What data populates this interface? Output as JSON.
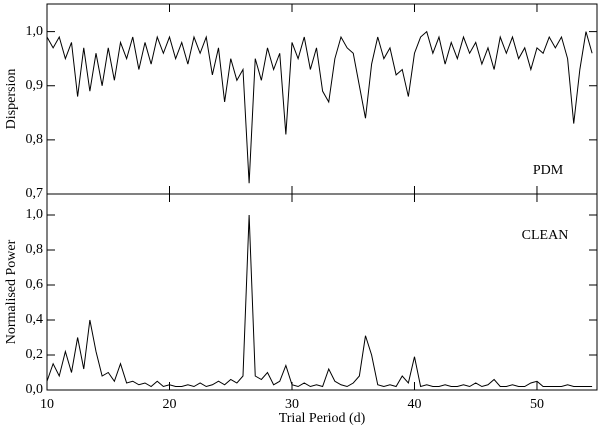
{
  "chart_data": [
    {
      "type": "line",
      "ylabel": "Dispersion",
      "annotation": "PDM",
      "x": [
        10,
        10.5,
        11,
        11.5,
        12,
        12.5,
        13,
        13.5,
        14,
        14.5,
        15,
        15.5,
        16,
        16.5,
        17,
        17.5,
        18,
        18.5,
        19,
        19.5,
        20,
        20.5,
        21,
        21.5,
        22,
        22.5,
        23,
        23.5,
        24,
        24.5,
        25,
        25.5,
        26,
        26.5,
        27,
        27.5,
        28,
        28.5,
        29,
        29.5,
        30,
        30.5,
        31,
        31.5,
        32,
        32.5,
        33,
        33.5,
        34,
        34.5,
        35,
        35.5,
        36,
        36.5,
        37,
        37.5,
        38,
        38.5,
        39,
        39.5,
        40,
        40.5,
        41,
        41.5,
        42,
        42.5,
        43,
        43.5,
        44,
        44.5,
        45,
        45.5,
        46,
        46.5,
        47,
        47.5,
        48,
        48.5,
        49,
        49.5,
        50,
        50.5,
        51,
        51.5,
        52,
        52.5,
        53,
        53.5,
        54,
        54.5
      ],
      "series": [
        {
          "color": "#000000",
          "values": [
            0.99,
            0.97,
            0.99,
            0.95,
            0.98,
            0.88,
            0.97,
            0.89,
            0.96,
            0.9,
            0.97,
            0.91,
            0.98,
            0.95,
            0.99,
            0.93,
            0.98,
            0.94,
            0.99,
            0.96,
            0.99,
            0.95,
            0.98,
            0.94,
            0.99,
            0.96,
            0.99,
            0.92,
            0.97,
            0.87,
            0.95,
            0.91,
            0.93,
            0.72,
            0.95,
            0.91,
            0.97,
            0.93,
            0.96,
            0.81,
            0.98,
            0.95,
            0.99,
            0.93,
            0.97,
            0.89,
            0.87,
            0.95,
            0.99,
            0.97,
            0.96,
            0.9,
            0.84,
            0.94,
            0.99,
            0.95,
            0.97,
            0.92,
            0.93,
            0.88,
            0.96,
            0.99,
            1.0,
            0.96,
            0.99,
            0.94,
            0.98,
            0.95,
            0.99,
            0.96,
            0.98,
            0.94,
            0.97,
            0.93,
            0.99,
            0.96,
            0.99,
            0.95,
            0.97,
            0.93,
            0.97,
            0.96,
            0.99,
            0.97,
            0.99,
            0.95,
            0.83,
            0.93,
            1.0,
            0.96
          ]
        }
      ],
      "xlim": [
        10,
        54.9
      ],
      "xticks": [
        10,
        20,
        30,
        40,
        50
      ],
      "ylim": [
        0.7,
        1.051
      ],
      "yticks": [
        {
          "value": 0.7,
          "label": "0,7"
        },
        {
          "value": 0.8,
          "label": "0,8"
        },
        {
          "value": 0.9,
          "label": "0,9"
        },
        {
          "value": 1.0,
          "label": "1,0"
        }
      ]
    },
    {
      "type": "line",
      "ylabel": "Normalised Power",
      "xlabel": "Trial Period (d)",
      "annotation": "CLEAN",
      "x": [
        10,
        10.5,
        11,
        11.5,
        12,
        12.5,
        13,
        13.5,
        14,
        14.5,
        15,
        15.5,
        16,
        16.5,
        17,
        17.5,
        18,
        18.5,
        19,
        19.5,
        20,
        20.5,
        21,
        21.5,
        22,
        22.5,
        23,
        23.5,
        24,
        24.5,
        25,
        25.5,
        26,
        26.5,
        27,
        27.5,
        28,
        28.5,
        29,
        29.5,
        30,
        30.5,
        31,
        31.5,
        32,
        32.5,
        33,
        33.5,
        34,
        34.5,
        35,
        35.5,
        36,
        36.5,
        37,
        37.5,
        38,
        38.5,
        39,
        39.5,
        40,
        40.5,
        41,
        41.5,
        42,
        42.5,
        43,
        43.5,
        44,
        44.5,
        45,
        45.5,
        46,
        46.5,
        47,
        47.5,
        48,
        48.5,
        49,
        49.5,
        50,
        50.5,
        51,
        51.5,
        52,
        52.5,
        53,
        53.5,
        54,
        54.5
      ],
      "series": [
        {
          "color": "#000000",
          "values": [
            0.05,
            0.15,
            0.08,
            0.22,
            0.1,
            0.3,
            0.12,
            0.4,
            0.22,
            0.08,
            0.1,
            0.05,
            0.15,
            0.04,
            0.05,
            0.03,
            0.04,
            0.02,
            0.05,
            0.02,
            0.03,
            0.02,
            0.02,
            0.03,
            0.02,
            0.04,
            0.02,
            0.03,
            0.05,
            0.03,
            0.06,
            0.04,
            0.08,
            1.0,
            0.08,
            0.06,
            0.1,
            0.03,
            0.05,
            0.14,
            0.03,
            0.02,
            0.04,
            0.02,
            0.03,
            0.02,
            0.12,
            0.05,
            0.03,
            0.02,
            0.04,
            0.08,
            0.31,
            0.2,
            0.03,
            0.02,
            0.03,
            0.02,
            0.08,
            0.04,
            0.19,
            0.02,
            0.03,
            0.02,
            0.02,
            0.03,
            0.02,
            0.02,
            0.03,
            0.02,
            0.04,
            0.02,
            0.03,
            0.06,
            0.02,
            0.02,
            0.03,
            0.02,
            0.02,
            0.04,
            0.05,
            0.02,
            0.02,
            0.02,
            0.02,
            0.03,
            0.02,
            0.02,
            0.02,
            0.02
          ]
        }
      ],
      "xlim": [
        10,
        54.9
      ],
      "xticks": [
        10,
        20,
        30,
        40,
        50
      ],
      "ylim": [
        0,
        1.12
      ],
      "yticks": [
        {
          "value": 0,
          "label": "0,0"
        },
        {
          "value": 0.2,
          "label": "0,2"
        },
        {
          "value": 0.4,
          "label": "0,4"
        },
        {
          "value": 0.6,
          "label": "0,6"
        },
        {
          "value": 0.8,
          "label": "0,8"
        },
        {
          "value": 1.0,
          "label": "1,0"
        }
      ]
    }
  ]
}
